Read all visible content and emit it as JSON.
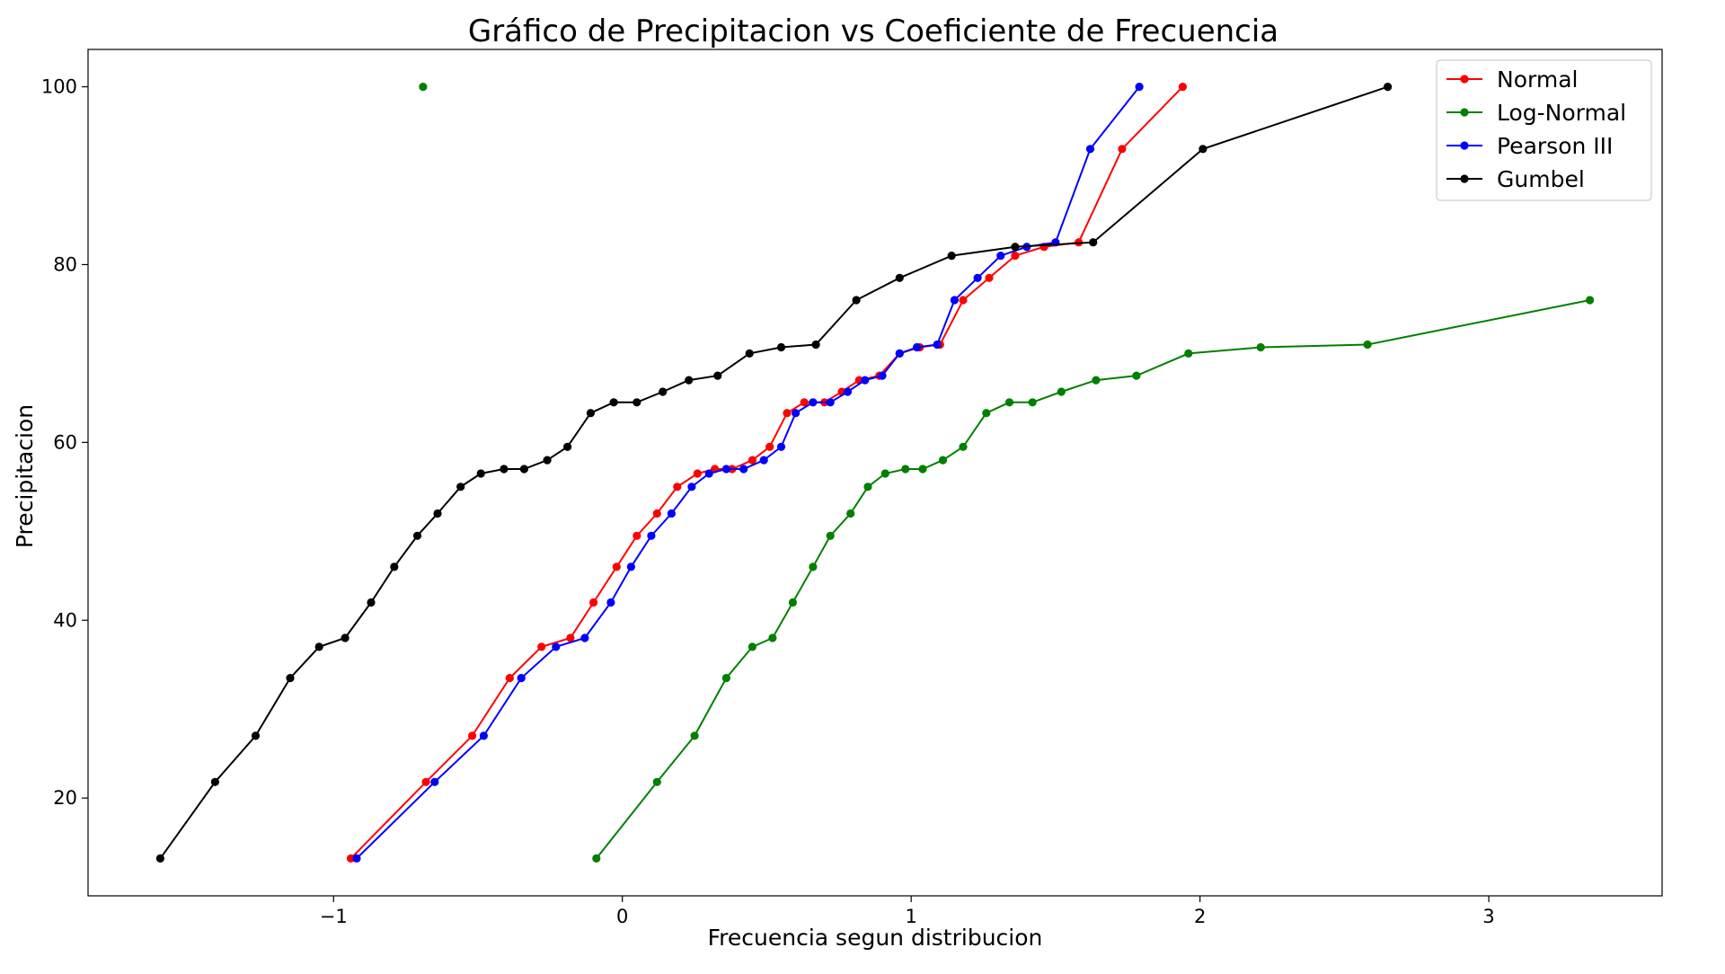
{
  "chart_data": {
    "type": "line",
    "title": "Gráfico de Precipitacion vs Coeficiente de Frecuencia",
    "xlabel": "Frecuencia segun distribucion",
    "ylabel": "Precipitacion",
    "xlim": [
      -1.85,
      3.6
    ],
    "ylim": [
      9,
      104.2
    ],
    "xticks": [
      -1,
      0,
      1,
      2,
      3
    ],
    "xtick_labels": [
      "−1",
      "0",
      "1",
      "2",
      "3"
    ],
    "yticks": [
      20,
      40,
      60,
      80,
      100
    ],
    "ytick_labels": [
      "20",
      "40",
      "60",
      "80",
      "100"
    ],
    "grid": false,
    "legend_position": "top-right",
    "series": [
      {
        "name": "Normal",
        "color": "#ff0000",
        "points": [
          [
            -0.94,
            13.2
          ],
          [
            -0.68,
            21.8
          ],
          [
            -0.52,
            27.0
          ],
          [
            -0.39,
            33.5
          ],
          [
            -0.28,
            37.0
          ],
          [
            -0.18,
            38.0
          ],
          [
            -0.1,
            42.0
          ],
          [
            -0.02,
            46.0
          ],
          [
            0.05,
            49.5
          ],
          [
            0.12,
            52.0
          ],
          [
            0.19,
            55.0
          ],
          [
            0.26,
            56.5
          ],
          [
            0.32,
            57.0
          ],
          [
            0.38,
            57.0
          ],
          [
            0.45,
            58.0
          ],
          [
            0.51,
            59.5
          ],
          [
            0.57,
            63.3
          ],
          [
            0.63,
            64.5
          ],
          [
            0.7,
            64.5
          ],
          [
            0.76,
            65.7
          ],
          [
            0.82,
            67.0
          ],
          [
            0.89,
            67.5
          ],
          [
            0.96,
            70.0
          ],
          [
            1.03,
            70.7
          ],
          [
            1.1,
            71.0
          ],
          [
            1.18,
            76.0
          ],
          [
            1.27,
            78.5
          ],
          [
            1.36,
            81.0
          ],
          [
            1.46,
            82.0
          ],
          [
            1.58,
            82.5
          ],
          [
            1.73,
            93.0
          ],
          [
            1.94,
            100.0
          ]
        ]
      },
      {
        "name": "Log-Normal",
        "color": "#008000",
        "points": [
          [
            -0.09,
            13.2
          ],
          [
            0.12,
            21.8
          ],
          [
            0.25,
            27.0
          ],
          [
            0.36,
            33.5
          ],
          [
            0.45,
            37.0
          ],
          [
            0.52,
            38.0
          ],
          [
            0.59,
            42.0
          ],
          [
            0.66,
            46.0
          ],
          [
            0.72,
            49.5
          ],
          [
            0.79,
            52.0
          ],
          [
            0.85,
            55.0
          ],
          [
            0.91,
            56.5
          ],
          [
            0.98,
            57.0
          ],
          [
            1.04,
            57.0
          ],
          [
            1.11,
            58.0
          ],
          [
            1.18,
            59.5
          ],
          [
            1.26,
            63.3
          ],
          [
            1.34,
            64.5
          ],
          [
            1.42,
            64.5
          ],
          [
            1.52,
            65.7
          ],
          [
            1.64,
            67.0
          ],
          [
            1.78,
            67.5
          ],
          [
            1.96,
            70.0
          ],
          [
            2.21,
            70.7
          ],
          [
            2.58,
            71.0
          ],
          [
            3.35,
            76.0
          ],
          null,
          [
            -0.69,
            100.0
          ]
        ]
      },
      {
        "name": "Pearson III",
        "color": "#0000ff",
        "points": [
          [
            -0.92,
            13.2
          ],
          [
            -0.65,
            21.8
          ],
          [
            -0.48,
            27.0
          ],
          [
            -0.35,
            33.5
          ],
          [
            -0.23,
            37.0
          ],
          [
            -0.13,
            38.0
          ],
          [
            -0.04,
            42.0
          ],
          [
            0.03,
            46.0
          ],
          [
            0.1,
            49.5
          ],
          [
            0.17,
            52.0
          ],
          [
            0.24,
            55.0
          ],
          [
            0.3,
            56.5
          ],
          [
            0.36,
            57.0
          ],
          [
            0.42,
            57.0
          ],
          [
            0.49,
            58.0
          ],
          [
            0.55,
            59.5
          ],
          [
            0.6,
            63.3
          ],
          [
            0.66,
            64.5
          ],
          [
            0.72,
            64.5
          ],
          [
            0.78,
            65.7
          ],
          [
            0.84,
            67.0
          ],
          [
            0.9,
            67.5
          ],
          [
            0.96,
            70.0
          ],
          [
            1.02,
            70.7
          ],
          [
            1.09,
            71.0
          ],
          [
            1.15,
            76.0
          ],
          [
            1.23,
            78.5
          ],
          [
            1.31,
            81.0
          ],
          [
            1.4,
            82.0
          ],
          [
            1.5,
            82.5
          ],
          [
            1.62,
            93.0
          ],
          [
            1.79,
            100.0
          ]
        ]
      },
      {
        "name": "Gumbel",
        "color": "#000000",
        "points": [
          [
            -1.6,
            13.2
          ],
          [
            -1.41,
            21.8
          ],
          [
            -1.27,
            27.0
          ],
          [
            -1.15,
            33.5
          ],
          [
            -1.05,
            37.0
          ],
          [
            -0.96,
            38.0
          ],
          [
            -0.87,
            42.0
          ],
          [
            -0.79,
            46.0
          ],
          [
            -0.71,
            49.5
          ],
          [
            -0.64,
            52.0
          ],
          [
            -0.56,
            55.0
          ],
          [
            -0.49,
            56.5
          ],
          [
            -0.41,
            57.0
          ],
          [
            -0.34,
            57.0
          ],
          [
            -0.26,
            58.0
          ],
          [
            -0.19,
            59.5
          ],
          [
            -0.11,
            63.3
          ],
          [
            -0.03,
            64.5
          ],
          [
            0.05,
            64.5
          ],
          [
            0.14,
            65.7
          ],
          [
            0.23,
            67.0
          ],
          [
            0.33,
            67.5
          ],
          [
            0.44,
            70.0
          ],
          [
            0.55,
            70.7
          ],
          [
            0.67,
            71.0
          ],
          [
            0.81,
            76.0
          ],
          [
            0.96,
            78.5
          ],
          [
            1.14,
            81.0
          ],
          [
            1.36,
            82.0
          ],
          [
            1.63,
            82.5
          ],
          [
            2.01,
            93.0
          ],
          [
            2.65,
            100.0
          ]
        ]
      }
    ]
  }
}
